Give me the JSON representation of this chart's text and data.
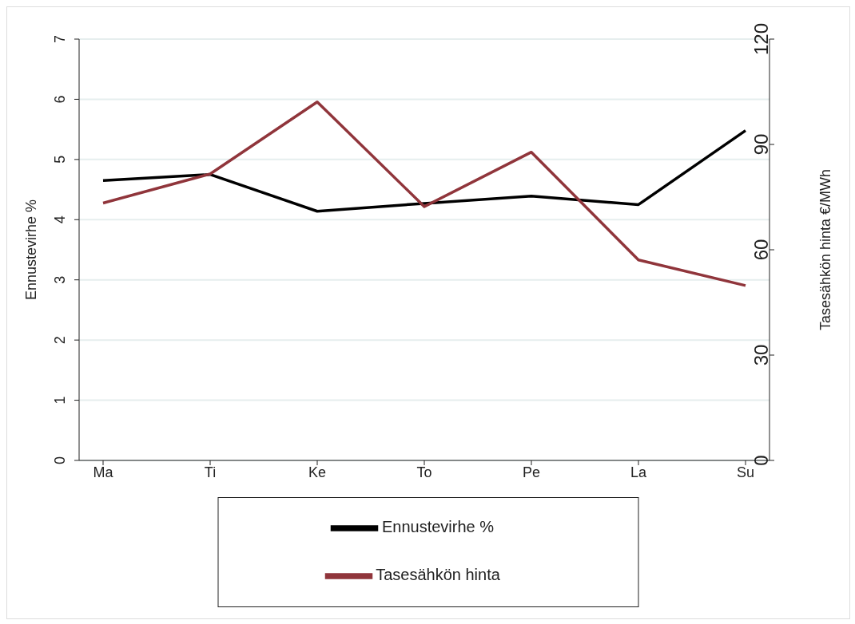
{
  "chart_data": {
    "type": "line",
    "categories": [
      "Ma",
      "Ti",
      "Ke",
      "To",
      "Pe",
      "La",
      "Su"
    ],
    "series": [
      {
        "name": "Ennustevirhe %",
        "color": "#000000",
        "values": [
          4.65,
          4.75,
          4.14,
          4.27,
          4.39,
          4.25,
          5.48
        ]
      },
      {
        "name": "Tasesähkön hinta",
        "color": "#90353b",
        "axis": "y2",
        "values": [
          73.3,
          81.6,
          102.1,
          72.3,
          87.8,
          57.1,
          49.8
        ]
      }
    ],
    "ylabel": "Ennustevirhe %",
    "y2label": "Tasesähkön hinta €/MWh",
    "ylim": [
      0,
      7
    ],
    "yticks": [
      0,
      1,
      2,
      3,
      4,
      5,
      6,
      7
    ],
    "y2lim": [
      0,
      120
    ],
    "y2ticks": [
      0,
      30,
      60,
      90,
      120
    ],
    "grid": "y",
    "legend": "bottom",
    "marker": "none",
    "line_style": "solid"
  }
}
